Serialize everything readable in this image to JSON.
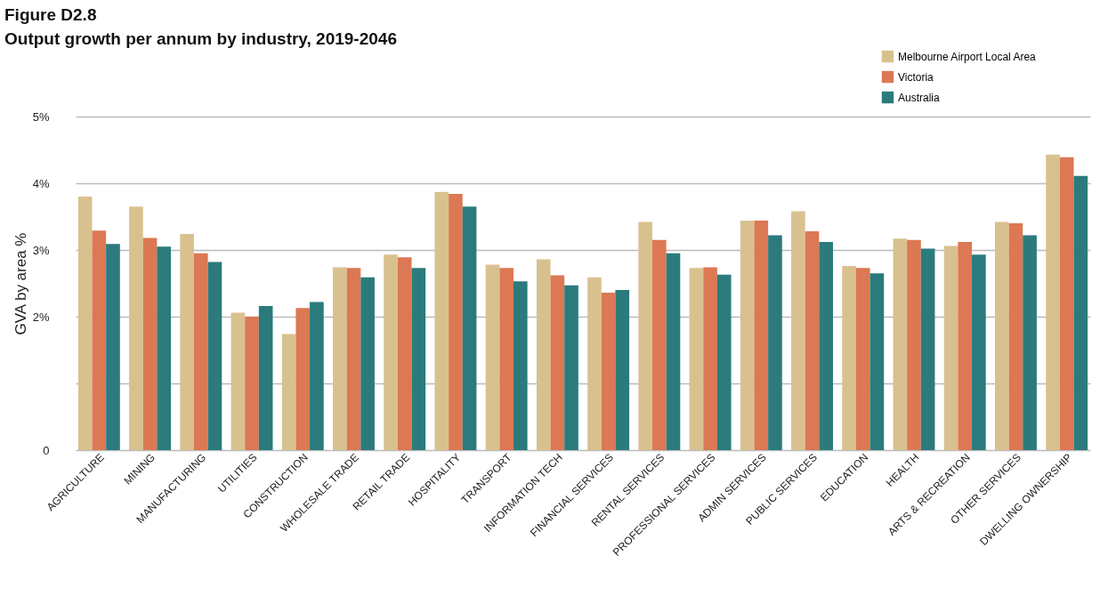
{
  "chart_data": {
    "type": "bar",
    "title": "Figure D2.8",
    "subtitle": "Output growth per annum by industry, 2019-2046",
    "ylabel": "GVA by area %",
    "categories": [
      "AGRICULTURE",
      "MINING",
      "MANUFACTURING",
      "UTILITIES",
      "CONSTRUCTION",
      "WHOLESALE TRADE",
      "RETAIL TRADE",
      "HOSPITALITY",
      "TRANSPORT",
      "INFORMATION TECH",
      "FINANCIAL SERVICES",
      "RENTAL SERVICES",
      "PROFESSIONAL SERVICES",
      "ADMIN SERVICES",
      "PUBLIC SERVICES",
      "EDUCATION",
      "HEALTH",
      "ARTS & RECREATION",
      "OTHER SERVICES",
      "DWELLING OWNERSHIP"
    ],
    "series": [
      {
        "name": "Melbourne Airport Local Area",
        "color": "#d9c18f",
        "values": [
          3.8,
          3.65,
          3.24,
          2.06,
          1.74,
          2.74,
          2.93,
          3.87,
          2.78,
          2.86,
          2.59,
          3.42,
          2.73,
          3.44,
          3.58,
          2.76,
          3.17,
          3.06,
          3.42,
          4.43
        ]
      },
      {
        "name": "Victoria",
        "color": "#dc7853",
        "values": [
          3.29,
          3.18,
          2.95,
          2.0,
          2.13,
          2.73,
          2.89,
          3.84,
          2.73,
          2.62,
          2.36,
          3.15,
          2.74,
          3.44,
          3.28,
          2.73,
          3.15,
          3.12,
          3.4,
          4.39
        ]
      },
      {
        "name": "Australia",
        "color": "#2b7b7d",
        "values": [
          3.09,
          3.05,
          2.82,
          2.16,
          2.22,
          2.59,
          2.73,
          3.65,
          2.53,
          2.47,
          2.4,
          2.95,
          2.63,
          3.22,
          3.12,
          2.65,
          3.02,
          2.93,
          3.22,
          4.11
        ]
      }
    ],
    "ylim": [
      0,
      5
    ],
    "yticks": [
      {
        "value": 0,
        "label": "0"
      },
      {
        "value": 1,
        "label": null
      },
      {
        "value": 2,
        "label": "2%"
      },
      {
        "value": 3,
        "label": "3%"
      },
      {
        "value": 4,
        "label": "4%"
      },
      {
        "value": 5,
        "label": "5%"
      }
    ],
    "grid": "y",
    "legend": "top right"
  }
}
